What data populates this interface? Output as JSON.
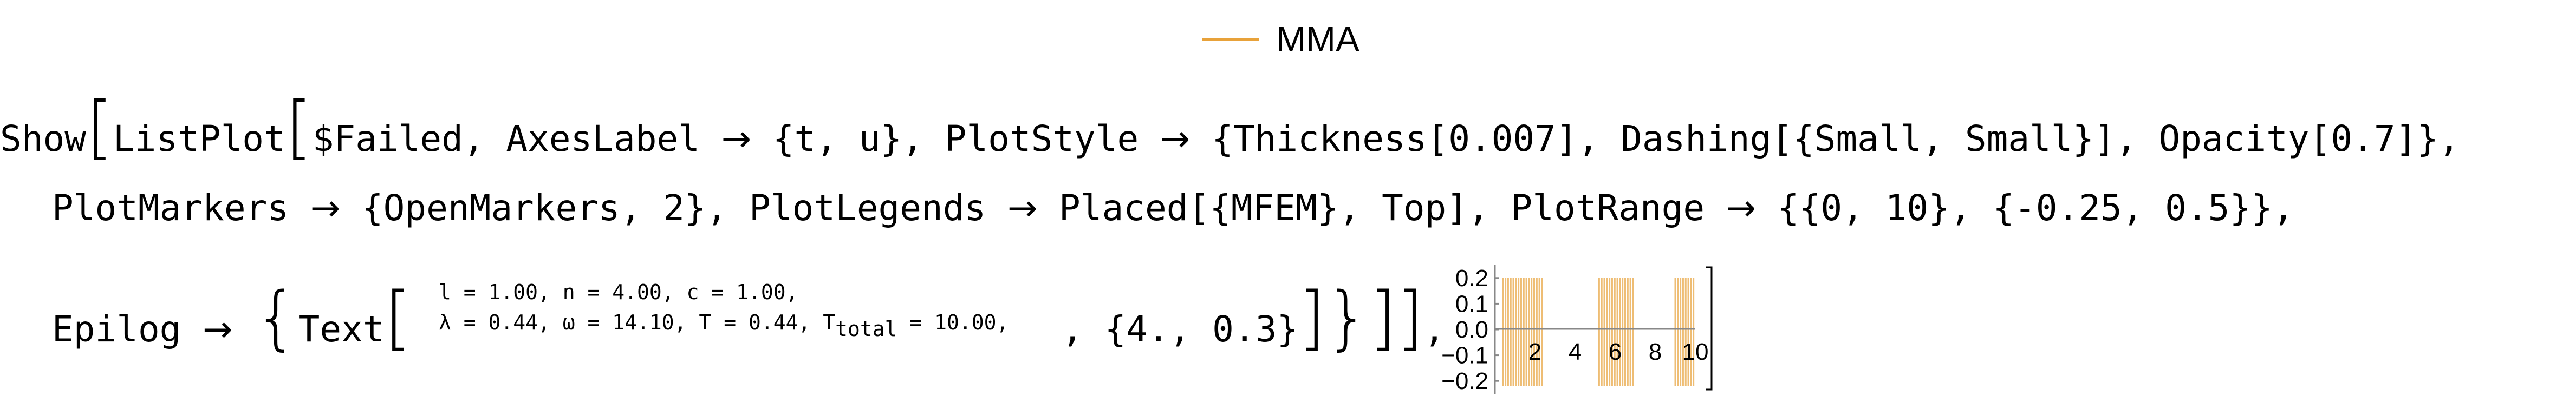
{
  "legend": {
    "label": "MMA",
    "color": "#E8A23A"
  },
  "code": {
    "show_open": "Show",
    "listplot": "ListPlot",
    "failed": "$Failed, AxesLabel",
    "axes_label_value": "{t, u}, PlotStyle",
    "plot_style_value": "{Thickness[0.007], Dashing[{Small, Small}], Opacity[0.7]},",
    "line2_a": "PlotMarkers",
    "line2_b": "{OpenMarkers, 2}, PlotLegends",
    "line2_c": "Placed[{MFEM}, Top], PlotRange",
    "line2_d": "{{0, 10}, {-0.25, 0.5}},",
    "epilog": "Epilog",
    "text_fn": "Text",
    "text_line1": "l = 1.00, n = 4.00, c = 1.00,",
    "text_line2_pre": "λ = 0.44, ω = 14.10, T = 0.44, T",
    "text_line2_sub": "total",
    "text_line2_post": " = 10.00,",
    "text_pos": ", {4., 0.3}",
    "trailing": ","
  },
  "arrow": "→",
  "chart_data": {
    "type": "line",
    "y_ticks": [
      "0.2",
      "0.1",
      "0.0",
      "−0.1",
      "−0.2"
    ],
    "x_ticks": [
      "2",
      "4",
      "6",
      "8",
      "10"
    ],
    "xlim": [
      0,
      10
    ],
    "ylim": [
      -0.25,
      0.25
    ],
    "series_color": "#E8A23A"
  }
}
